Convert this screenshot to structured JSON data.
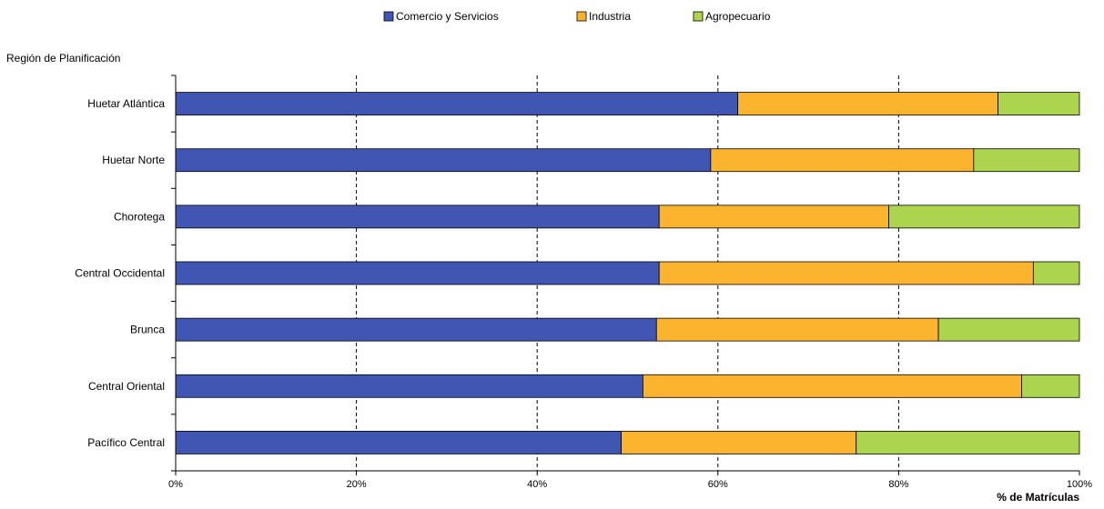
{
  "chart_data": {
    "type": "bar",
    "orientation": "horizontal",
    "stacked": true,
    "percent_stacked": true,
    "title": "",
    "ylabel": "Región de Planificación",
    "xlabel": "% de Matrículas",
    "categories": [
      "Huetar Atlántica",
      "Huetar Norte",
      "Chorotega",
      "Central Occidental",
      "Brunca",
      "Central Oriental",
      "Pacífico Central"
    ],
    "series": [
      {
        "name": "Comercio y Servicios",
        "color": "#4056b2",
        "values": [
          62.2,
          59.2,
          53.5,
          53.5,
          53.2,
          51.7,
          49.3
        ]
      },
      {
        "name": "Industria",
        "color": "#fcb32e",
        "values": [
          28.8,
          29.1,
          25.4,
          41.4,
          31.2,
          41.9,
          26.0
        ]
      },
      {
        "name": "Agropecuario",
        "color": "#add44f",
        "values": [
          9.0,
          11.7,
          21.1,
          5.1,
          15.6,
          6.4,
          24.7
        ]
      }
    ],
    "xlim": [
      0,
      100
    ],
    "xticks": [
      "0%",
      "20%",
      "40%",
      "60%",
      "80%",
      "100%"
    ],
    "grid": "vertical dashed",
    "legend_position": "top"
  }
}
